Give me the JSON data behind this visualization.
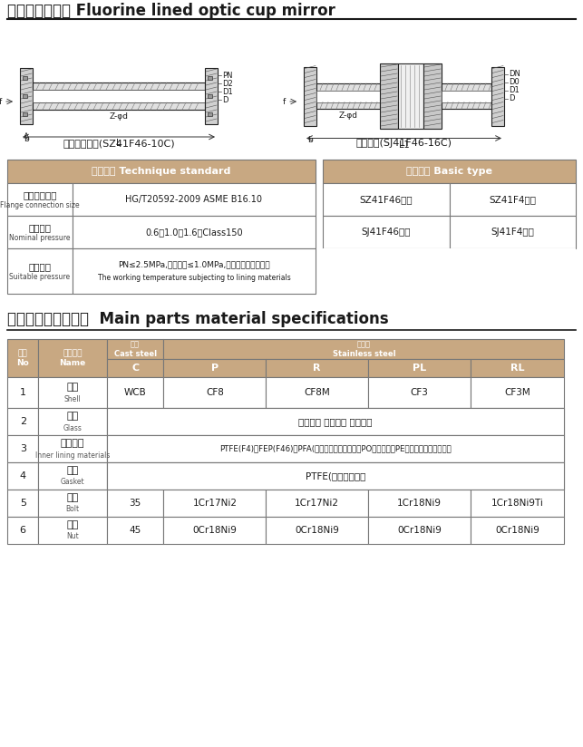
{
  "title_cn": "衬氟视盅、视镜",
  "title_en": " Fluorine lined optic cup mirror",
  "subtitle1_cn": "玻璃管式视盅(SZ41F46-10C)",
  "subtitle2_cn": "直通视镜(SJ41F46-16C)",
  "tech_table_title_left": "技术标准 Technique standard",
  "tech_table_title_right": "基本型号 Basic type",
  "tech_rows": [
    {
      "label_cn": "法兰连接尺寸",
      "label_en": "Flange connection size",
      "value": "HG/T20592-2009 ASME B16.10",
      "right_col1": "SZ41F46管式",
      "right_col2": "SZ41F4管式"
    },
    {
      "label_cn": "公称压力",
      "label_en": "Nominal pressure",
      "value": "0.6、1.0、1.6、Class150",
      "right_col1": "SJ41F46直通",
      "right_col2": "SJ41F4直通"
    },
    {
      "label_cn": "适用压力",
      "label_en": "Suitable pressure",
      "value_line1": "PN≤2.5MPa,工作压力≤1.0MPa,工作温度视衬里材料",
      "value_line2": "The working temperature subjecting to lining materials",
      "right_col1": "",
      "right_col2": ""
    }
  ],
  "parts_title_cn": "主要零件部件材料表",
  "parts_title_en": "Main parts material specifications",
  "parts_data": [
    [
      "1",
      "壳体",
      "Shell",
      "WCB",
      "CF8",
      "CF8M",
      "CF3",
      "CF3M"
    ],
    [
      "2",
      "玻璃",
      "Glass",
      "硼硅玻璃 钢化玻璃 石英玻璃",
      "",
      "",
      "",
      ""
    ],
    [
      "3",
      "内衬材料",
      "Inner lining materials",
      "PTFE(F4)、FEP(F46)、PFA(可溶性聚四氟乙烯）、PO（聚烯）、PE（超高分子量聚乙烯）",
      "",
      "",
      "",
      ""
    ],
    [
      "4",
      "垫片",
      "Gasket",
      "PTFE(聚四氟乙烯）",
      "",
      "",
      "",
      ""
    ],
    [
      "5",
      "螺栓",
      "Bolt",
      "35",
      "1Cr17Ni2",
      "1Cr17Ni2",
      "1Cr18Ni9",
      "1Cr18Ni9Ti"
    ],
    [
      "6",
      "螺母",
      "Nut",
      "45",
      "0Cr18Ni9",
      "0Cr18Ni9",
      "0Cr18Ni9",
      "0Cr18Ni9"
    ]
  ],
  "header_bg": "#C8A882",
  "border_color": "#888888"
}
